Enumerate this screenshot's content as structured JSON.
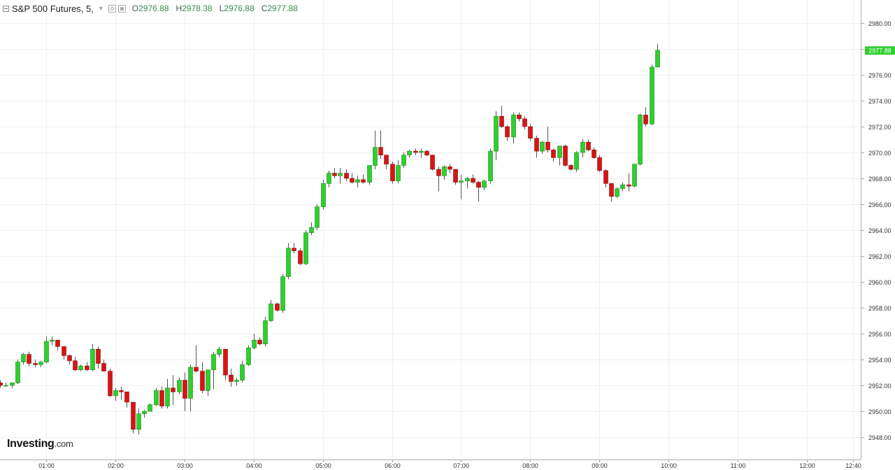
{
  "header": {
    "symbol": "S&P 500 Futures, 5,",
    "caret_icon": "chevron-down-icon",
    "open_label": "O",
    "open_value": "2976.88",
    "high_label": "H",
    "high_value": "2978.38",
    "low_label": "L",
    "low_value": "2976.88",
    "close_label": "C",
    "close_value": "2977.88"
  },
  "logo": {
    "name": "Investing",
    "suffix": ".com"
  },
  "colors": {
    "up": "#2fcf2f",
    "down": "#d71515",
    "grid": "#eef0f2",
    "axis": "#aaaaaa",
    "last_price_bg": "#2fcf2f"
  },
  "chart_data": {
    "type": "candlestick",
    "interval_minutes": 5,
    "x_start": "00:20",
    "y_ticks": [
      "2948.00",
      "2950.00",
      "2952.00",
      "2954.00",
      "2956.00",
      "2958.00",
      "2960.00",
      "2962.00",
      "2964.00",
      "2966.00",
      "2968.00",
      "2970.00",
      "2972.00",
      "2974.00",
      "2976.00",
      "2978.00",
      "2980.00"
    ],
    "ylim": [
      2946.2,
      2981.4
    ],
    "x_ticks": [
      "01:00",
      "02:00",
      "03:00",
      "04:00",
      "05:00",
      "06:00",
      "07:00",
      "08:00",
      "09:00",
      "10:00",
      "11:00",
      "12:00",
      "12:40"
    ],
    "x_tick_times": [
      "01:00",
      "02:00",
      "03:00",
      "04:00",
      "05:00",
      "06:00",
      "07:00",
      "08:00",
      "09:00",
      "10:00",
      "11:00",
      "12:00",
      "12:40"
    ],
    "xlim": [
      "00:20",
      "12:50"
    ],
    "last_price_label": "2977.88",
    "last_price": 2977.88,
    "candles": [
      [
        2952.2,
        2952.4,
        2951.8,
        2952.0
      ],
      [
        2952.0,
        2952.2,
        2951.9,
        2952.0
      ],
      [
        2952.0,
        2952.2,
        2951.8,
        2952.2
      ],
      [
        2952.2,
        2954.0,
        2952.1,
        2953.8
      ],
      [
        2953.8,
        2954.5,
        2953.6,
        2954.4
      ],
      [
        2954.4,
        2954.6,
        2953.5,
        2953.7
      ],
      [
        2953.7,
        2954.0,
        2953.4,
        2953.6
      ],
      [
        2953.6,
        2953.9,
        2953.4,
        2953.8
      ],
      [
        2953.8,
        2955.8,
        2953.7,
        2955.4
      ],
      [
        2955.4,
        2955.8,
        2955.1,
        2955.5
      ],
      [
        2955.5,
        2955.5,
        2954.7,
        2955.0
      ],
      [
        2955.0,
        2955.0,
        2954.0,
        2954.3
      ],
      [
        2954.3,
        2954.4,
        2953.6,
        2953.9
      ],
      [
        2953.9,
        2954.2,
        2953.1,
        2953.2
      ],
      [
        2953.2,
        2953.6,
        2953.1,
        2953.5
      ],
      [
        2953.5,
        2953.8,
        2953.1,
        2953.2
      ],
      [
        2953.2,
        2955.2,
        2953.1,
        2954.8
      ],
      [
        2954.8,
        2955.0,
        2953.3,
        2953.7
      ],
      [
        2953.7,
        2954.0,
        2953.1,
        2953.1
      ],
      [
        2953.1,
        2953.3,
        2951.1,
        2951.2
      ],
      [
        2951.2,
        2951.8,
        2950.8,
        2951.6
      ],
      [
        2951.6,
        2951.9,
        2950.9,
        2951.5
      ],
      [
        2951.5,
        2951.5,
        2950.3,
        2950.7
      ],
      [
        2950.7,
        2950.7,
        2948.3,
        2948.6
      ],
      [
        2948.6,
        2950.2,
        2948.2,
        2949.8
      ],
      [
        2949.8,
        2950.1,
        2949.5,
        2950.0
      ],
      [
        2950.0,
        2950.6,
        2950.0,
        2950.5
      ],
      [
        2950.5,
        2951.8,
        2950.4,
        2951.6
      ],
      [
        2951.6,
        2951.9,
        2950.2,
        2950.4
      ],
      [
        2950.4,
        2952.5,
        2950.2,
        2951.8
      ],
      [
        2951.8,
        2952.8,
        2950.5,
        2951.5
      ],
      [
        2951.5,
        2952.6,
        2951.3,
        2952.4
      ],
      [
        2952.4,
        2953.0,
        2950.0,
        2951.0
      ],
      [
        2951.0,
        2953.6,
        2950.0,
        2953.4
      ],
      [
        2953.4,
        2955.1,
        2953.0,
        2953.1
      ],
      [
        2953.1,
        2953.8,
        2951.4,
        2951.6
      ],
      [
        2951.6,
        2953.2,
        2951.2,
        2953.2
      ],
      [
        2953.2,
        2954.6,
        2951.7,
        2954.4
      ],
      [
        2954.4,
        2955.0,
        2954.2,
        2954.8
      ],
      [
        2954.8,
        2954.8,
        2952.4,
        2952.8
      ],
      [
        2952.8,
        2953.3,
        2951.9,
        2952.3
      ],
      [
        2952.3,
        2952.6,
        2952.0,
        2952.4
      ],
      [
        2952.4,
        2953.9,
        2952.2,
        2953.6
      ],
      [
        2953.6,
        2955.1,
        2953.5,
        2954.9
      ],
      [
        2954.9,
        2956.0,
        2954.8,
        2955.5
      ],
      [
        2955.5,
        2955.7,
        2955.1,
        2955.2
      ],
      [
        2955.2,
        2957.3,
        2955.0,
        2957.0
      ],
      [
        2957.0,
        2958.6,
        2956.9,
        2958.3
      ],
      [
        2958.3,
        2958.4,
        2957.7,
        2957.8
      ],
      [
        2957.8,
        2960.6,
        2957.6,
        2960.4
      ],
      [
        2960.4,
        2963.0,
        2960.2,
        2962.6
      ],
      [
        2962.6,
        2963.0,
        2962.2,
        2962.4
      ],
      [
        2962.4,
        2962.6,
        2961.3,
        2961.4
      ],
      [
        2961.4,
        2964.0,
        2961.3,
        2963.8
      ],
      [
        2963.8,
        2964.6,
        2963.6,
        2964.2
      ],
      [
        2964.2,
        2966.0,
        2964.0,
        2965.8
      ],
      [
        2965.8,
        2967.9,
        2965.6,
        2967.6
      ],
      [
        2967.6,
        2968.6,
        2967.3,
        2968.4
      ],
      [
        2968.4,
        2968.8,
        2968.0,
        2968.2
      ],
      [
        2968.2,
        2968.8,
        2967.6,
        2968.4
      ],
      [
        2968.4,
        2968.7,
        2967.8,
        2968.0
      ],
      [
        2968.0,
        2968.4,
        2967.6,
        2967.7
      ],
      [
        2967.7,
        2968.2,
        2967.3,
        2967.9
      ],
      [
        2967.9,
        2968.3,
        2967.6,
        2967.7
      ],
      [
        2967.7,
        2969.0,
        2967.5,
        2969.0
      ],
      [
        2969.0,
        2971.7,
        2968.7,
        2970.4
      ],
      [
        2970.4,
        2971.7,
        2969.5,
        2969.8
      ],
      [
        2969.8,
        2969.8,
        2968.7,
        2969.1
      ],
      [
        2969.1,
        2969.3,
        2967.6,
        2967.8
      ],
      [
        2967.8,
        2969.4,
        2967.6,
        2969.0
      ],
      [
        2969.0,
        2970.0,
        2968.8,
        2969.8
      ],
      [
        2969.8,
        2970.2,
        2969.6,
        2970.1
      ],
      [
        2970.1,
        2970.3,
        2969.8,
        2970.0
      ],
      [
        2970.0,
        2970.3,
        2969.6,
        2970.1
      ],
      [
        2970.1,
        2970.2,
        2969.7,
        2969.8
      ],
      [
        2969.8,
        2969.8,
        2968.6,
        2968.7
      ],
      [
        2968.7,
        2968.9,
        2967.0,
        2968.2
      ],
      [
        2968.2,
        2969.0,
        2967.9,
        2968.9
      ],
      [
        2968.9,
        2969.1,
        2968.4,
        2968.7
      ],
      [
        2968.7,
        2968.7,
        2967.5,
        2967.7
      ],
      [
        2967.7,
        2968.3,
        2966.4,
        2967.8
      ],
      [
        2967.8,
        2968.1,
        2967.2,
        2968.0
      ],
      [
        2968.0,
        2968.3,
        2967.6,
        2967.7
      ],
      [
        2967.7,
        2967.8,
        2966.2,
        2967.3
      ],
      [
        2967.3,
        2967.9,
        2967.1,
        2967.8
      ],
      [
        2967.8,
        2970.3,
        2967.6,
        2970.1
      ],
      [
        2970.1,
        2973.2,
        2969.4,
        2972.8
      ],
      [
        2972.8,
        2973.6,
        2971.9,
        2972.0
      ],
      [
        2972.0,
        2972.1,
        2970.9,
        2971.2
      ],
      [
        2971.2,
        2973.1,
        2970.7,
        2972.9
      ],
      [
        2972.9,
        2973.1,
        2972.4,
        2972.6
      ],
      [
        2972.6,
        2972.8,
        2971.8,
        2972.0
      ],
      [
        2972.0,
        2972.2,
        2970.9,
        2971.1
      ],
      [
        2971.1,
        2971.3,
        2969.6,
        2970.1
      ],
      [
        2970.1,
        2970.9,
        2969.9,
        2970.8
      ],
      [
        2970.8,
        2972.0,
        2970.0,
        2970.2
      ],
      [
        2970.2,
        2970.3,
        2969.3,
        2969.6
      ],
      [
        2969.6,
        2970.5,
        2969.0,
        2970.5
      ],
      [
        2970.5,
        2970.6,
        2968.9,
        2969.0
      ],
      [
        2969.0,
        2969.1,
        2968.6,
        2968.7
      ],
      [
        2968.7,
        2970.1,
        2968.5,
        2970.0
      ],
      [
        2970.0,
        2971.0,
        2969.6,
        2970.8
      ],
      [
        2970.8,
        2971.0,
        2970.1,
        2970.2
      ],
      [
        2970.2,
        2970.4,
        2969.5,
        2969.6
      ],
      [
        2969.6,
        2969.8,
        2968.5,
        2968.6
      ],
      [
        2968.6,
        2968.7,
        2967.3,
        2967.6
      ],
      [
        2967.6,
        2967.6,
        2966.2,
        2966.6
      ],
      [
        2966.6,
        2967.3,
        2966.5,
        2967.2
      ],
      [
        2967.2,
        2967.7,
        2967.0,
        2967.5
      ],
      [
        2967.5,
        2968.4,
        2967.0,
        2967.4
      ],
      [
        2967.4,
        2969.1,
        2967.3,
        2969.1
      ],
      [
        2969.1,
        2973.0,
        2969.0,
        2972.9
      ],
      [
        2972.9,
        2973.5,
        2972.0,
        2972.2
      ],
      [
        2972.2,
        2976.8,
        2972.1,
        2976.6
      ],
      [
        2976.6,
        2978.4,
        2976.6,
        2977.9
      ]
    ]
  }
}
